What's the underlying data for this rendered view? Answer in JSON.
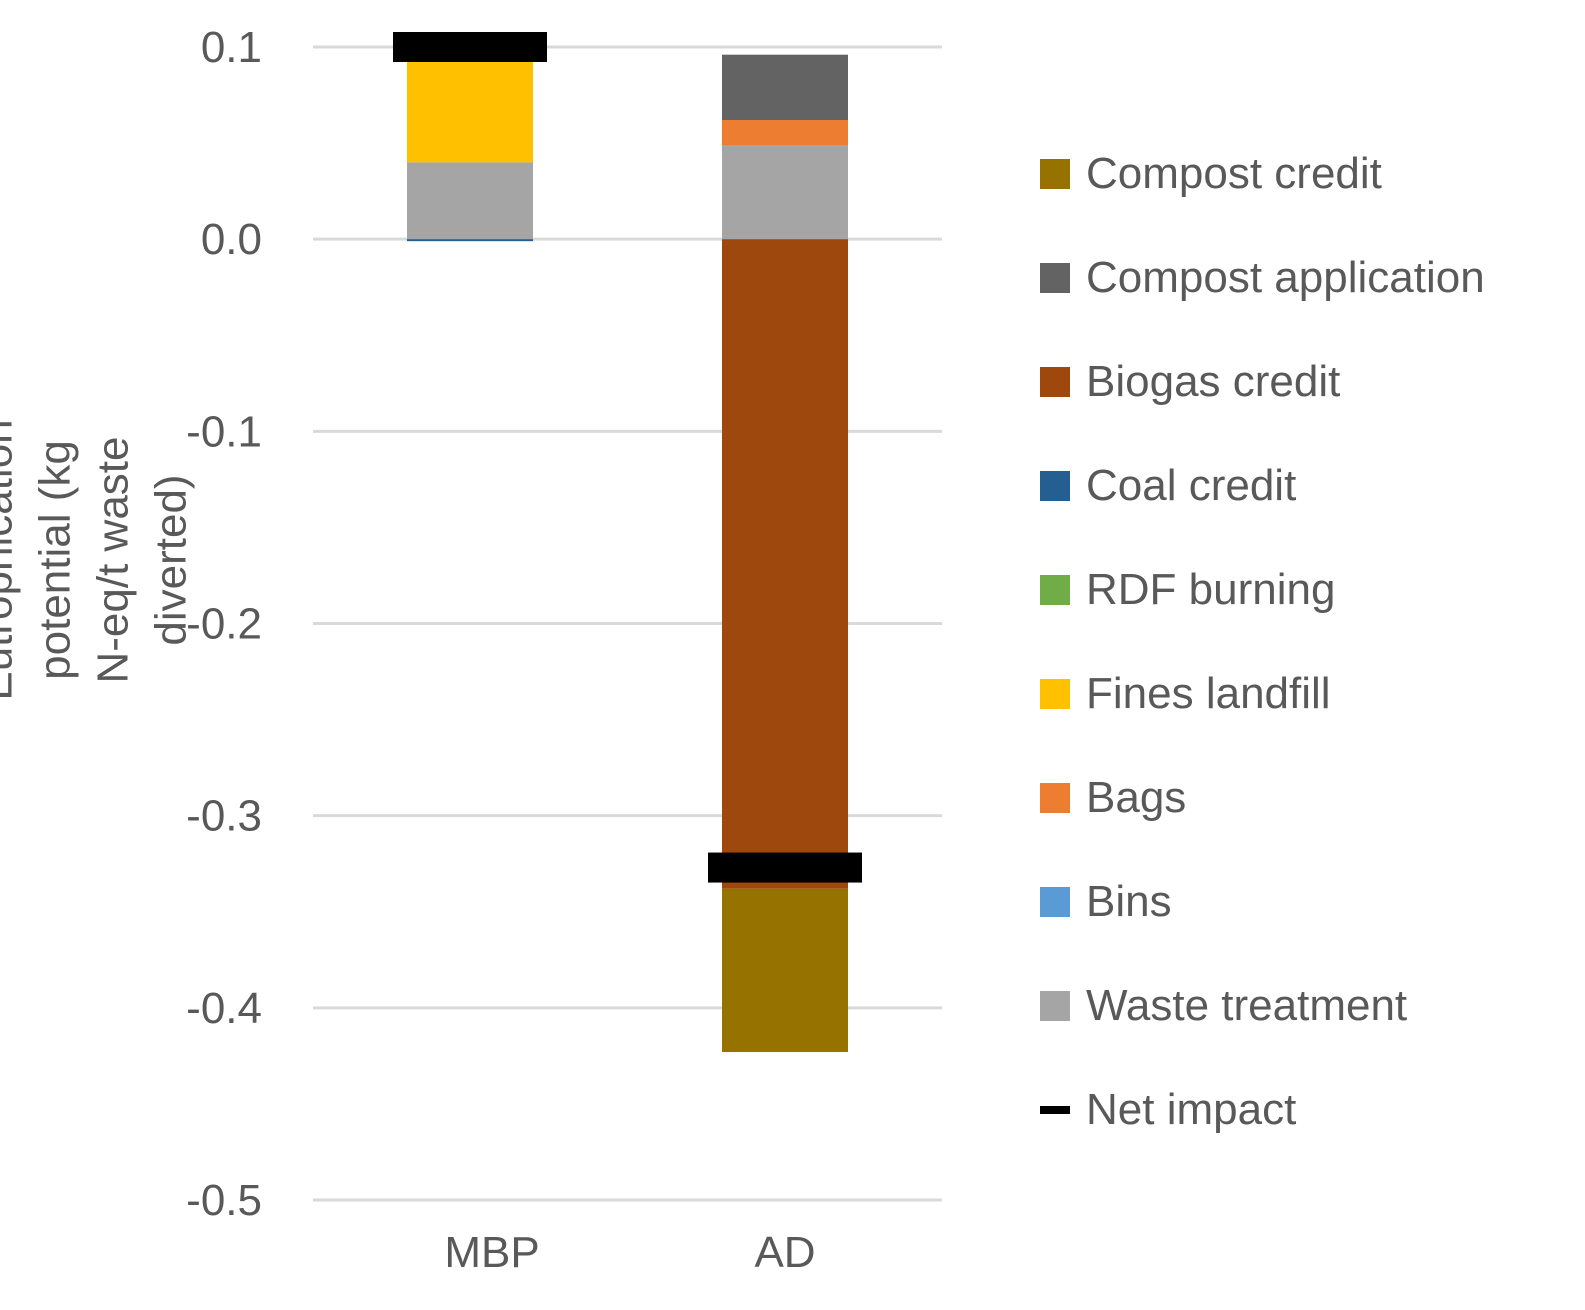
{
  "chart_data": {
    "type": "bar",
    "stacked": true,
    "title": "",
    "xlabel": "",
    "ylabel": "Eutrophication potential (kg N-eq/t waste diverted)",
    "ylim": [
      -0.5,
      0.1
    ],
    "yticks": [
      0.1,
      0.0,
      -0.1,
      -0.2,
      -0.3,
      -0.4,
      -0.5
    ],
    "ytick_labels": [
      "0.1",
      "0.0",
      "-0.1",
      "-0.2",
      "-0.3",
      "-0.4",
      "-0.5"
    ],
    "grid": true,
    "legend_position": "right",
    "categories": [
      "MBP",
      "AD"
    ],
    "series": [
      {
        "name": "Compost credit",
        "color": "#967300",
        "values": [
          0,
          -0.085
        ]
      },
      {
        "name": "Compost application",
        "color": "#636363",
        "values": [
          0,
          0.034
        ]
      },
      {
        "name": "Biogas credit",
        "color": "#9E480E",
        "values": [
          0,
          -0.338
        ]
      },
      {
        "name": "Coal credit",
        "color": "#255E91",
        "values": [
          -0.001,
          0
        ]
      },
      {
        "name": "RDF burning",
        "color": "#70AD47",
        "values": [
          0,
          0
        ]
      },
      {
        "name": "Fines landfill",
        "color": "#FFC000",
        "values": [
          0.053,
          0
        ]
      },
      {
        "name": "Bags",
        "color": "#ED7D31",
        "values": [
          0,
          0.013
        ]
      },
      {
        "name": "Bins",
        "color": "#5B9BD5",
        "values": [
          0,
          0
        ]
      },
      {
        "name": "Waste treatment",
        "color": "#A5A5A5",
        "values": [
          0.04,
          0.049
        ]
      }
    ],
    "net_impact": {
      "name": "Net impact",
      "color": "#000000",
      "values": [
        0.1,
        -0.327
      ]
    }
  }
}
